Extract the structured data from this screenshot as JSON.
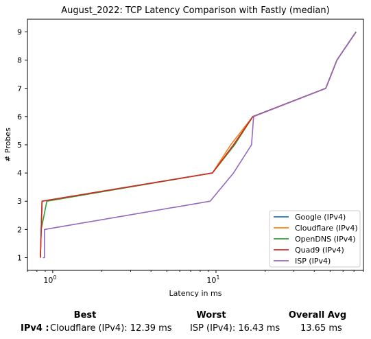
{
  "chart_data": {
    "type": "line",
    "title": "August_2022: TCP Latency Comparison with Fastly (median)",
    "xlabel": "Latency in ms",
    "ylabel": "# Probes",
    "xscale": "log",
    "xlim": [
      0.7,
      80
    ],
    "ylim": [
      0.55,
      9.45
    ],
    "x_ticks": [
      {
        "value": 1,
        "label": "10^0"
      },
      {
        "value": 10,
        "label": "10^1"
      }
    ],
    "y_ticks": [
      1,
      2,
      3,
      4,
      5,
      6,
      7,
      8,
      9
    ],
    "grid": false,
    "legend_position": "lower-right",
    "series": [
      {
        "name": "Google (IPv4)",
        "color": "#1f77b4",
        "x": [
          0.84,
          0.85,
          0.86,
          9.5,
          13.0,
          16.8,
          47.0,
          55.0,
          72.0
        ],
        "y": [
          1,
          2,
          3,
          4,
          5,
          6,
          7,
          8,
          9
        ]
      },
      {
        "name": "Cloudflare (IPv4)",
        "color": "#ff7f0e",
        "x": [
          0.84,
          0.85,
          0.86,
          9.5,
          12.3,
          16.8,
          47.0,
          55.0,
          72.0
        ],
        "y": [
          1,
          2,
          3,
          4,
          5,
          6,
          7,
          8,
          9
        ]
      },
      {
        "name": "OpenDNS (IPv4)",
        "color": "#2ca02c",
        "x": [
          0.84,
          0.85,
          0.92,
          9.5,
          13.0,
          16.8,
          47.0,
          55.0,
          72.0
        ],
        "y": [
          1,
          2,
          3,
          4,
          5,
          6,
          7,
          8,
          9
        ]
      },
      {
        "name": "Quad9 (IPv4)",
        "color": "#d62728",
        "x": [
          0.84,
          0.85,
          0.86,
          9.5,
          12.8,
          16.8,
          47.0,
          55.0,
          72.0
        ],
        "y": [
          1,
          2,
          3,
          4,
          5,
          6,
          7,
          8,
          9
        ]
      },
      {
        "name": "ISP (IPv4)",
        "color": "#9467bd",
        "x": [
          0.87,
          0.89,
          0.89,
          9.2,
          12.8,
          16.5,
          17.0,
          47.0,
          55.0,
          72.0
        ],
        "y": [
          1,
          1,
          2,
          3,
          4,
          5,
          6,
          7,
          8,
          9
        ]
      }
    ]
  },
  "summary": {
    "best_header": "Best",
    "worst_header": "Worst",
    "avg_header": "Overall Avg",
    "row_label": "IPv4 :",
    "best_value": "Cloudflare (IPv4): 12.39 ms",
    "worst_value": "ISP (IPv4): 16.43 ms",
    "avg_value": "13.65 ms"
  }
}
